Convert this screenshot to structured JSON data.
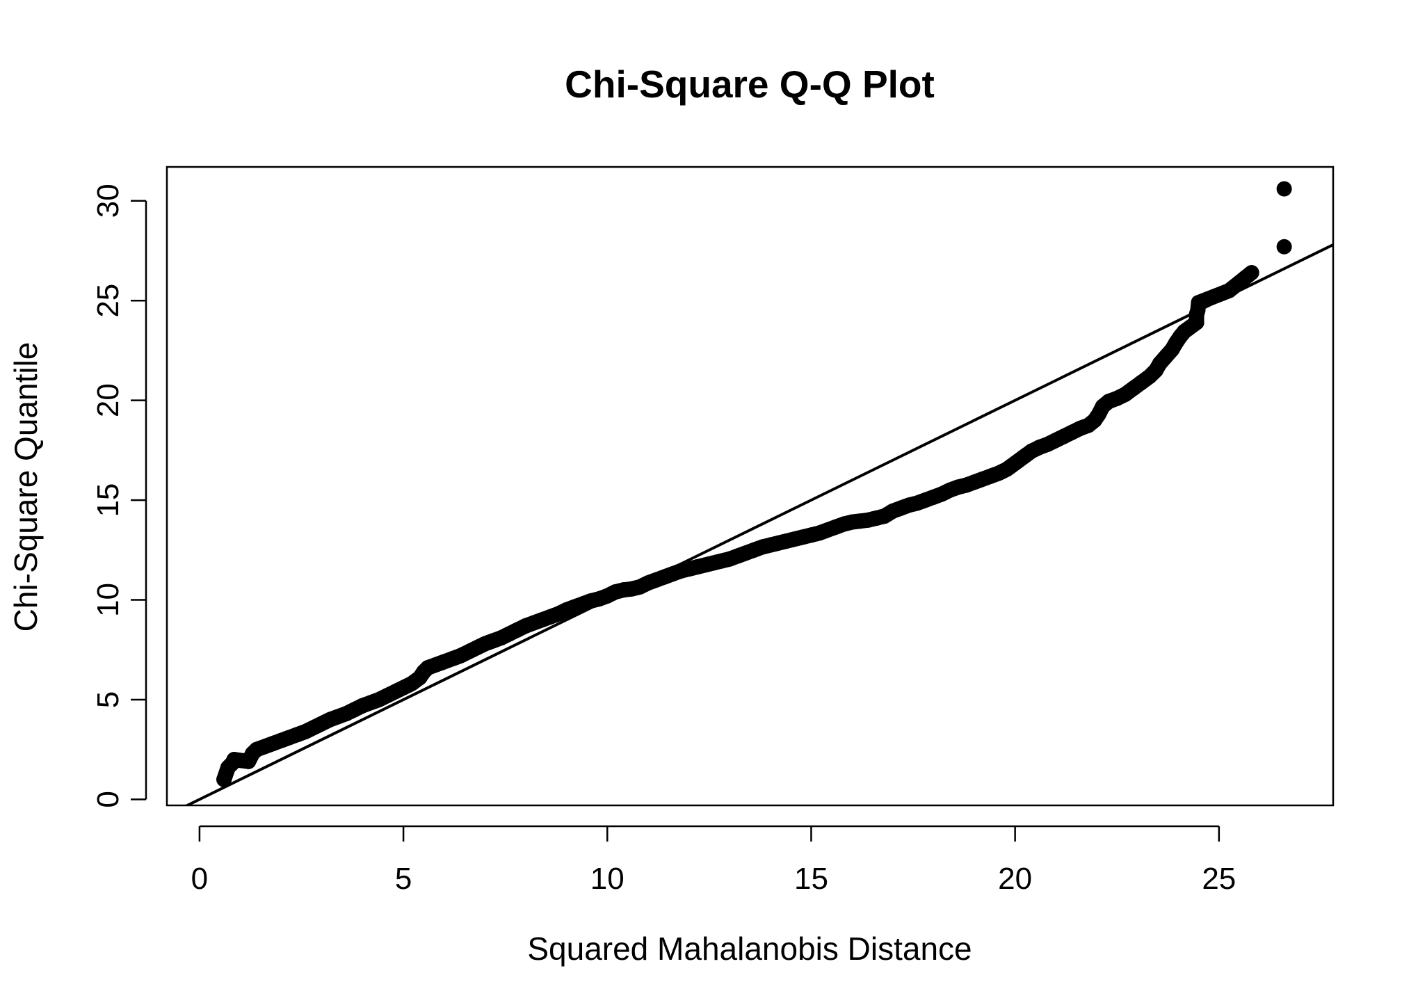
{
  "chart_data": {
    "type": "scatter",
    "title": "Chi-Square Q-Q Plot",
    "xlabel": "Squared Mahalanobis Distance",
    "ylabel": "Chi-Square Quantile",
    "xlim": [
      -0.8,
      27.8
    ],
    "ylim": [
      -0.3,
      31.7
    ],
    "x_ticks": [
      0,
      5,
      10,
      15,
      20,
      25
    ],
    "y_ticks": [
      0,
      5,
      10,
      15,
      20,
      25,
      30
    ],
    "x_tick_labels": [
      "0",
      "5",
      "10",
      "15",
      "20",
      "25"
    ],
    "y_tick_labels": [
      "0",
      "5",
      "10",
      "15",
      "20",
      "25",
      "30"
    ],
    "grid": false,
    "reference_line": {
      "intercept": 0,
      "slope": 1
    },
    "point_color": "#000000",
    "series": [
      {
        "points": [
          [
            0.6,
            1.0
          ],
          [
            0.7,
            1.6
          ],
          [
            0.8,
            1.8
          ],
          [
            0.85,
            2.0
          ],
          [
            1.2,
            1.9
          ],
          [
            1.3,
            2.3
          ],
          [
            1.4,
            2.5
          ],
          [
            1.6,
            2.65
          ],
          [
            1.8,
            2.8
          ],
          [
            2.0,
            2.95
          ],
          [
            2.2,
            3.1
          ],
          [
            2.4,
            3.25
          ],
          [
            2.6,
            3.4
          ],
          [
            2.8,
            3.6
          ],
          [
            3.0,
            3.8
          ],
          [
            3.2,
            4.0
          ],
          [
            3.4,
            4.15
          ],
          [
            3.6,
            4.3
          ],
          [
            3.8,
            4.5
          ],
          [
            4.0,
            4.7
          ],
          [
            4.2,
            4.85
          ],
          [
            4.4,
            5.0
          ],
          [
            4.6,
            5.2
          ],
          [
            4.8,
            5.4
          ],
          [
            5.0,
            5.6
          ],
          [
            5.2,
            5.8
          ],
          [
            5.4,
            6.1
          ],
          [
            5.5,
            6.4
          ],
          [
            5.6,
            6.6
          ],
          [
            5.8,
            6.75
          ],
          [
            6.0,
            6.9
          ],
          [
            6.2,
            7.05
          ],
          [
            6.4,
            7.2
          ],
          [
            6.6,
            7.4
          ],
          [
            6.8,
            7.6
          ],
          [
            7.0,
            7.8
          ],
          [
            7.2,
            7.95
          ],
          [
            7.4,
            8.1
          ],
          [
            7.6,
            8.3
          ],
          [
            7.8,
            8.5
          ],
          [
            8.0,
            8.7
          ],
          [
            8.2,
            8.85
          ],
          [
            8.4,
            9.0
          ],
          [
            8.6,
            9.15
          ],
          [
            8.8,
            9.3
          ],
          [
            9.0,
            9.5
          ],
          [
            9.2,
            9.65
          ],
          [
            9.4,
            9.8
          ],
          [
            9.6,
            9.95
          ],
          [
            9.8,
            10.05
          ],
          [
            10.0,
            10.2
          ],
          [
            10.2,
            10.4
          ],
          [
            10.4,
            10.5
          ],
          [
            10.6,
            10.55
          ],
          [
            10.8,
            10.65
          ],
          [
            11.0,
            10.85
          ],
          [
            11.2,
            11.0
          ],
          [
            11.4,
            11.15
          ],
          [
            11.6,
            11.3
          ],
          [
            11.8,
            11.45
          ],
          [
            12.0,
            11.55
          ],
          [
            12.2,
            11.65
          ],
          [
            12.4,
            11.75
          ],
          [
            12.6,
            11.85
          ],
          [
            12.8,
            11.95
          ],
          [
            13.0,
            12.05
          ],
          [
            13.2,
            12.2
          ],
          [
            13.4,
            12.35
          ],
          [
            13.6,
            12.5
          ],
          [
            13.8,
            12.65
          ],
          [
            14.0,
            12.75
          ],
          [
            14.2,
            12.85
          ],
          [
            14.4,
            12.95
          ],
          [
            14.6,
            13.05
          ],
          [
            14.8,
            13.15
          ],
          [
            15.0,
            13.25
          ],
          [
            15.2,
            13.35
          ],
          [
            15.4,
            13.5
          ],
          [
            15.6,
            13.65
          ],
          [
            15.8,
            13.8
          ],
          [
            16.0,
            13.9
          ],
          [
            16.2,
            13.95
          ],
          [
            16.4,
            14.0
          ],
          [
            16.6,
            14.1
          ],
          [
            16.8,
            14.2
          ],
          [
            17.0,
            14.45
          ],
          [
            17.2,
            14.6
          ],
          [
            17.4,
            14.75
          ],
          [
            17.6,
            14.85
          ],
          [
            17.8,
            15.0
          ],
          [
            18.0,
            15.15
          ],
          [
            18.2,
            15.3
          ],
          [
            18.4,
            15.5
          ],
          [
            18.6,
            15.65
          ],
          [
            18.8,
            15.75
          ],
          [
            19.0,
            15.9
          ],
          [
            19.2,
            16.05
          ],
          [
            19.4,
            16.2
          ],
          [
            19.6,
            16.35
          ],
          [
            19.8,
            16.55
          ],
          [
            20.0,
            16.85
          ],
          [
            20.2,
            17.15
          ],
          [
            20.4,
            17.45
          ],
          [
            20.6,
            17.65
          ],
          [
            20.8,
            17.8
          ],
          [
            21.0,
            18.0
          ],
          [
            21.2,
            18.2
          ],
          [
            21.4,
            18.4
          ],
          [
            21.6,
            18.6
          ],
          [
            21.8,
            18.75
          ],
          [
            21.95,
            19.0
          ],
          [
            22.05,
            19.3
          ],
          [
            22.15,
            19.7
          ],
          [
            22.3,
            19.95
          ],
          [
            22.5,
            20.1
          ],
          [
            22.7,
            20.3
          ],
          [
            22.9,
            20.6
          ],
          [
            23.1,
            20.9
          ],
          [
            23.3,
            21.2
          ],
          [
            23.45,
            21.5
          ],
          [
            23.55,
            21.85
          ],
          [
            23.7,
            22.2
          ],
          [
            23.85,
            22.55
          ],
          [
            23.95,
            22.9
          ],
          [
            24.05,
            23.2
          ],
          [
            24.15,
            23.45
          ],
          [
            24.45,
            23.9
          ],
          [
            24.45,
            24.3
          ],
          [
            24.48,
            24.5
          ],
          [
            24.5,
            24.9
          ],
          [
            25.25,
            25.5
          ],
          [
            25.8,
            26.4
          ],
          [
            26.6,
            27.7
          ],
          [
            26.6,
            30.6
          ]
        ]
      }
    ]
  }
}
